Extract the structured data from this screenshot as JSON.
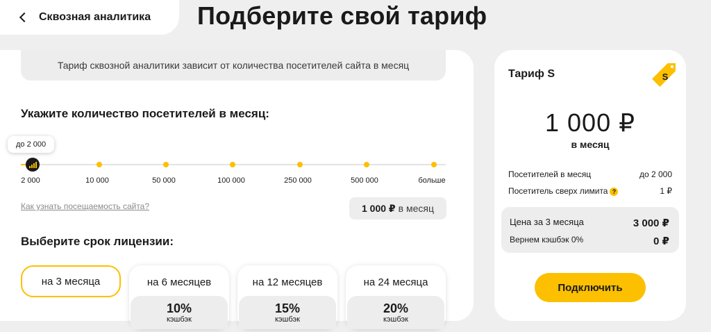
{
  "header": {
    "back_label": "Сквозная аналитика",
    "title": "Подберите свой тариф"
  },
  "main": {
    "info_text": "Тариф сквозной аналитики зависит от количества посетителей сайта в месяц",
    "visitors_title": "Укажите количество посетителей в месяц:",
    "slider": {
      "tooltip": "до 2 000",
      "ticks": [
        "2 000",
        "10 000",
        "50 000",
        "100 000",
        "250 000",
        "500 000",
        "больше"
      ],
      "selected_index": 0
    },
    "how_link": "Как узнать посещаемость сайта?",
    "price_amount": "1 000 ₽",
    "price_suffix": "в месяц",
    "license_title": "Выберите срок лицензии:",
    "terms": [
      {
        "label": "на 3 месяца",
        "selected": true
      },
      {
        "label": "на 6 месяцев",
        "cashback": "10%",
        "cashback_label": "кэшбэк"
      },
      {
        "label": "на 12 месяцев",
        "cashback": "15%",
        "cashback_label": "кэшбэк"
      },
      {
        "label": "на 24 месяца",
        "cashback": "20%",
        "cashback_label": "кэшбэк"
      }
    ]
  },
  "summary": {
    "title": "Тариф S",
    "tag_letter": "S",
    "price": "1 000 ₽",
    "per_month": "в месяц",
    "visitors_label": "Посетителей в месяц",
    "visitors_value": "до 2 000",
    "over_limit_label": "Посетитель сверх лимита",
    "over_limit_value": "1 ₽",
    "help_icon": "?",
    "period_price_label": "Цена за 3 месяца",
    "period_price_value": "3 000 ₽",
    "cashback_label": "Вернем кэшбэк 0%",
    "cashback_value": "0 ₽",
    "connect_label": "Подключить"
  },
  "colors": {
    "accent": "#fcc000",
    "background": "#efefef",
    "card": "#ffffff",
    "muted": "#ededed"
  }
}
